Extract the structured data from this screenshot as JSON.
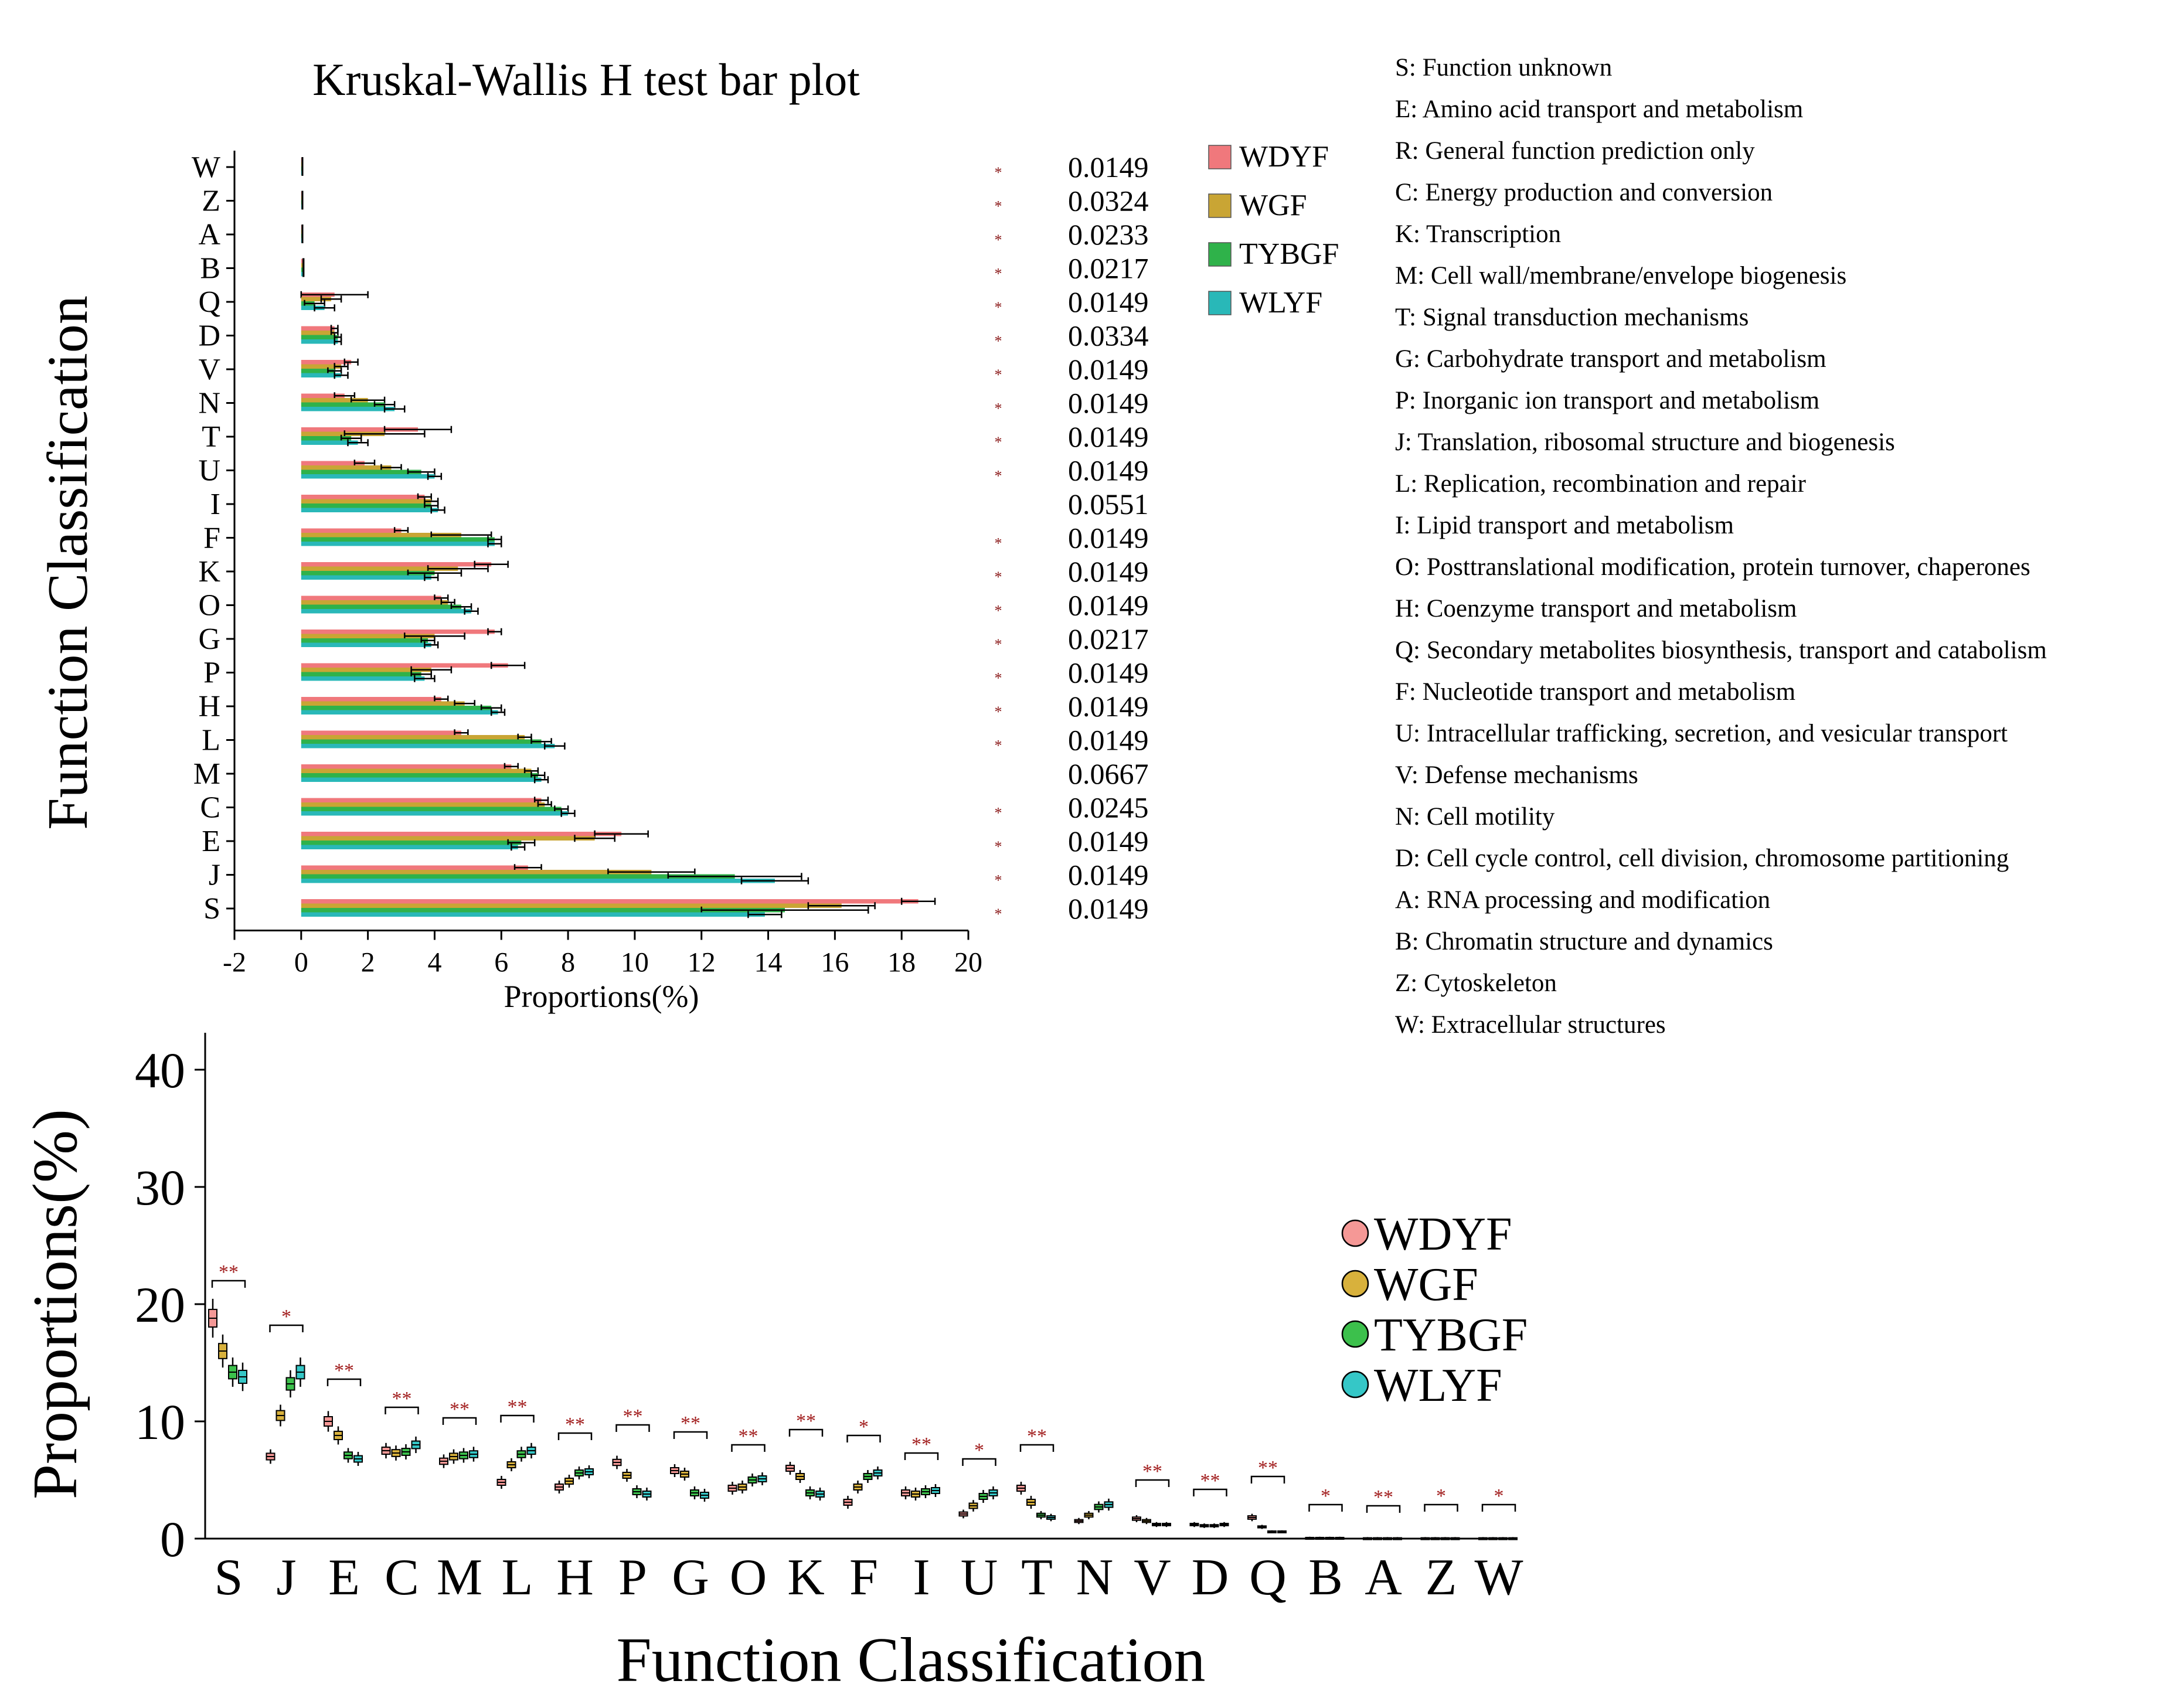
{
  "chart_data": [
    {
      "type": "bar",
      "orientation": "horizontal",
      "title": "Kruskal-Wallis H test bar plot",
      "xlabel": "Proportions(%)",
      "ylabel": "Function  Classification",
      "xlim": [
        -2,
        20
      ],
      "xticks": [
        "-2",
        "0",
        "2",
        "4",
        "6",
        "8",
        "10",
        "12",
        "14",
        "16",
        "18",
        "20"
      ],
      "categories": [
        "W",
        "Z",
        "A",
        "B",
        "Q",
        "D",
        "V",
        "N",
        "T",
        "U",
        "I",
        "F",
        "K",
        "O",
        "G",
        "P",
        "H",
        "L",
        "M",
        "C",
        "E",
        "J",
        "S"
      ],
      "series": [
        {
          "name": "WDYF",
          "color": "#f0787c",
          "values": [
            0.02,
            0.02,
            0.02,
            0.05,
            1.0,
            1.0,
            1.5,
            1.3,
            3.5,
            1.9,
            3.7,
            3.0,
            5.7,
            4.2,
            5.8,
            6.2,
            4.2,
            4.8,
            6.3,
            7.2,
            9.6,
            6.8,
            18.5
          ],
          "errors": [
            0.01,
            0.01,
            0.01,
            0.01,
            1.0,
            0.1,
            0.2,
            0.3,
            1.0,
            0.3,
            0.2,
            0.2,
            0.5,
            0.2,
            0.2,
            0.5,
            0.2,
            0.2,
            0.2,
            0.2,
            0.8,
            0.4,
            0.5
          ]
        },
        {
          "name": "WGF",
          "color": "#c9a534",
          "values": [
            0.02,
            0.02,
            0.02,
            0.05,
            0.9,
            1.0,
            1.2,
            2.0,
            2.5,
            2.7,
            3.9,
            4.8,
            4.7,
            4.4,
            4.0,
            3.9,
            4.9,
            6.7,
            6.9,
            7.3,
            8.8,
            10.5,
            16.2
          ],
          "errors": [
            0.01,
            0.01,
            0.01,
            0.01,
            0.3,
            0.1,
            0.2,
            0.5,
            1.2,
            0.3,
            0.2,
            0.9,
            0.9,
            0.2,
            0.9,
            0.6,
            0.3,
            0.2,
            0.2,
            0.2,
            0.6,
            1.3,
            1.0
          ]
        },
        {
          "name": "TYBGF",
          "color": "#2fb24a",
          "values": [
            0.02,
            0.02,
            0.02,
            0.05,
            0.4,
            1.1,
            1.0,
            2.5,
            1.5,
            3.6,
            3.9,
            5.8,
            4.0,
            4.8,
            3.8,
            3.6,
            5.7,
            7.2,
            7.1,
            7.8,
            6.6,
            13.0,
            14.5
          ],
          "errors": [
            0.01,
            0.01,
            0.01,
            0.01,
            0.3,
            0.1,
            0.2,
            0.3,
            0.3,
            0.4,
            0.2,
            0.2,
            0.8,
            0.3,
            0.2,
            0.3,
            0.3,
            0.3,
            0.2,
            0.2,
            0.4,
            2.0,
            2.5
          ]
        },
        {
          "name": "WLYF",
          "color": "#29b8b8",
          "values": [
            0.02,
            0.02,
            0.02,
            0.05,
            0.7,
            1.1,
            1.2,
            2.8,
            1.7,
            4.0,
            4.1,
            5.8,
            3.9,
            5.1,
            3.9,
            3.7,
            5.9,
            7.6,
            7.2,
            8.0,
            6.5,
            14.2,
            13.9
          ],
          "errors": [
            0.01,
            0.01,
            0.01,
            0.01,
            0.3,
            0.1,
            0.2,
            0.3,
            0.3,
            0.2,
            0.2,
            0.2,
            0.2,
            0.2,
            0.2,
            0.3,
            0.2,
            0.3,
            0.2,
            0.2,
            0.2,
            1.0,
            0.5
          ]
        }
      ],
      "p_values": [
        "0.0149",
        "0.0324",
        "0.0233",
        "0.0217",
        "0.0149",
        "0.0334",
        "0.0149",
        "0.0149",
        "0.0149",
        "0.0149",
        "0.0551",
        "0.0149",
        "0.0149",
        "0.0149",
        "0.0217",
        "0.0149",
        "0.0149",
        "0.0149",
        "0.0667",
        "0.0245",
        "0.0149",
        "0.0149",
        "0.0149"
      ],
      "significance_marks": [
        "*",
        "*",
        "*",
        "*",
        "*",
        "*",
        "*",
        "*",
        "*",
        "*",
        "",
        "*",
        "*",
        "*",
        "*",
        "*",
        "*",
        "*",
        "",
        "*",
        "*",
        "*",
        "*"
      ],
      "legend_position": "right"
    },
    {
      "type": "box",
      "xlabel": "Function  Classification",
      "ylabel": "Proportions(%)",
      "ylim": [
        0,
        40
      ],
      "yticks": [
        "0",
        "10",
        "20",
        "30",
        "40"
      ],
      "categories": [
        "S",
        "J",
        "E",
        "C",
        "M",
        "L",
        "H",
        "P",
        "G",
        "O",
        "K",
        "F",
        "I",
        "U",
        "T",
        "N",
        "V",
        "D",
        "Q",
        "B",
        "A",
        "Z",
        "W"
      ],
      "series": [
        {
          "name": "WDYF",
          "color": "#f59896",
          "medians": [
            18.8,
            7.0,
            10.0,
            7.5,
            6.6,
            4.8,
            4.4,
            6.5,
            5.8,
            4.3,
            6.0,
            3.1,
            3.9,
            2.1,
            4.3,
            1.5,
            1.7,
            1.2,
            1.8,
            0.05,
            0.02,
            0.02,
            0.02
          ]
        },
        {
          "name": "WGF",
          "color": "#d8b13c",
          "medians": [
            16.0,
            10.5,
            8.8,
            7.3,
            7.0,
            6.3,
            4.9,
            5.4,
            5.5,
            4.4,
            5.3,
            4.4,
            3.8,
            2.8,
            3.1,
            2.0,
            1.5,
            1.1,
            1.0,
            0.05,
            0.02,
            0.02,
            0.02
          ]
        },
        {
          "name": "TYBGF",
          "color": "#3cc04c",
          "medians": [
            14.2,
            13.2,
            7.1,
            7.4,
            7.1,
            7.2,
            5.6,
            4.0,
            3.9,
            5.0,
            3.9,
            5.3,
            4.0,
            3.6,
            2.0,
            2.7,
            1.2,
            1.1,
            0.6,
            0.05,
            0.02,
            0.02,
            0.02
          ]
        },
        {
          "name": "WLYF",
          "color": "#35c7c7",
          "medians": [
            13.8,
            14.2,
            6.8,
            8.0,
            7.2,
            7.5,
            5.7,
            3.8,
            3.7,
            5.1,
            3.8,
            5.6,
            4.1,
            3.9,
            1.8,
            2.9,
            1.2,
            1.2,
            0.6,
            0.05,
            0.02,
            0.02,
            0.02
          ]
        }
      ],
      "significance": [
        "**",
        "*",
        "**",
        "**",
        "**",
        "**",
        "**",
        "**",
        "**",
        "**",
        "**",
        "*",
        "**",
        "*",
        "**",
        "",
        "**",
        "**",
        "**",
        "*",
        "**",
        "*",
        "*"
      ],
      "bracket_heights": [
        22.0,
        18.2,
        13.6,
        11.2,
        10.3,
        10.5,
        9.0,
        9.7,
        9.1,
        8.0,
        9.3,
        8.8,
        7.3,
        6.8,
        8.0,
        0,
        5.0,
        4.2,
        5.3,
        2.9,
        2.8,
        2.9,
        2.9
      ],
      "legend_position": "right"
    }
  ],
  "cog_legend": [
    "S: Function unknown",
    "E: Amino acid transport and metabolism",
    "R: General function prediction only",
    "C: Energy production and conversion",
    "K: Transcription",
    "M: Cell wall/membrane/envelope biogenesis",
    "T: Signal transduction mechanisms",
    "G: Carbohydrate transport and metabolism",
    "P: Inorganic ion transport and metabolism",
    "J: Translation, ribosomal structure and biogenesis",
    "L: Replication, recombination and repair",
    "I: Lipid transport and metabolism",
    "O: Posttranslational modification, protein turnover, chaperones",
    "H: Coenzyme transport and metabolism",
    "Q: Secondary metabolites biosynthesis, transport and catabolism",
    "F: Nucleotide transport and metabolism",
    "U: Intracellular trafficking, secretion, and vesicular transport",
    "V: Defense mechanisms",
    "N: Cell motility",
    "D: Cell cycle control, cell division, chromosome partitioning",
    "A: RNA processing and modification",
    "B: Chromatin structure and dynamics",
    "Z: Cytoskeleton",
    "W: Extracellular structures"
  ]
}
